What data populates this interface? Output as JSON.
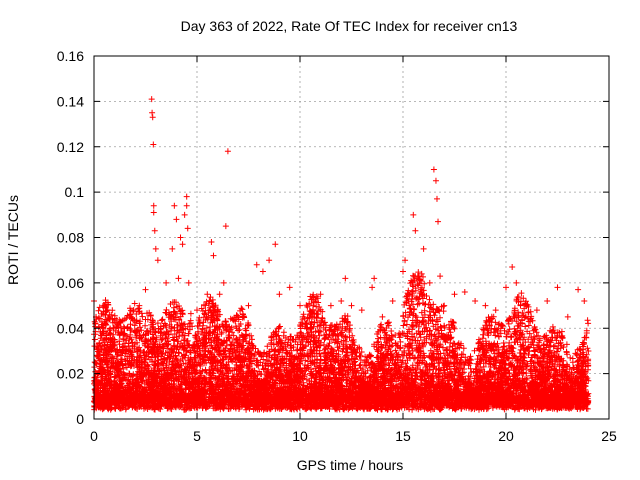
{
  "chart_data": {
    "type": "scatter",
    "title": "Day 363 of 2022, Rate Of TEC Index for receiver cn13",
    "xlabel": "GPS time / hours",
    "ylabel": "ROTI / TECUs",
    "xlim": [
      0,
      25
    ],
    "ylim": [
      0,
      0.16
    ],
    "xticks": [
      "0",
      "5",
      "10",
      "15",
      "20",
      "25"
    ],
    "yticks": [
      "0",
      "0.02",
      "0.04",
      "0.06",
      "0.08",
      "0.1",
      "0.12",
      "0.14",
      "0.16"
    ],
    "grid": true,
    "marker": "plus",
    "color": "#ff0000",
    "series": [
      {
        "points": [
          [
            0.0,
            0.052
          ],
          [
            0.1,
            0.045
          ],
          [
            0.3,
            0.03
          ],
          [
            0.5,
            0.025
          ],
          [
            1.0,
            0.035
          ],
          [
            1.3,
            0.043
          ],
          [
            1.8,
            0.045
          ],
          [
            2.2,
            0.05
          ],
          [
            2.5,
            0.057
          ],
          [
            2.8,
            0.141
          ],
          [
            2.82,
            0.135
          ],
          [
            2.85,
            0.133
          ],
          [
            2.88,
            0.121
          ],
          [
            2.9,
            0.094
          ],
          [
            2.9,
            0.091
          ],
          [
            2.95,
            0.083
          ],
          [
            3.0,
            0.075
          ],
          [
            3.1,
            0.07
          ],
          [
            3.5,
            0.06
          ],
          [
            3.8,
            0.075
          ],
          [
            3.9,
            0.094
          ],
          [
            4.0,
            0.088
          ],
          [
            4.1,
            0.062
          ],
          [
            4.2,
            0.08
          ],
          [
            4.3,
            0.077
          ],
          [
            4.4,
            0.09
          ],
          [
            4.5,
            0.098
          ],
          [
            4.5,
            0.094
          ],
          [
            4.55,
            0.084
          ],
          [
            4.6,
            0.06
          ],
          [
            5.0,
            0.048
          ],
          [
            5.5,
            0.055
          ],
          [
            5.7,
            0.078
          ],
          [
            5.8,
            0.072
          ],
          [
            6.1,
            0.055
          ],
          [
            6.3,
            0.06
          ],
          [
            6.4,
            0.085
          ],
          [
            6.5,
            0.118
          ],
          [
            7.0,
            0.045
          ],
          [
            7.5,
            0.05
          ],
          [
            7.9,
            0.068
          ],
          [
            8.2,
            0.065
          ],
          [
            8.5,
            0.07
          ],
          [
            8.8,
            0.077
          ],
          [
            9.0,
            0.055
          ],
          [
            9.5,
            0.058
          ],
          [
            10.0,
            0.05
          ],
          [
            10.5,
            0.054
          ],
          [
            11.0,
            0.055
          ],
          [
            11.5,
            0.05
          ],
          [
            12.0,
            0.052
          ],
          [
            12.2,
            0.062
          ],
          [
            12.5,
            0.05
          ],
          [
            13.0,
            0.048
          ],
          [
            13.5,
            0.058
          ],
          [
            13.6,
            0.062
          ],
          [
            14.0,
            0.045
          ],
          [
            14.5,
            0.052
          ],
          [
            15.0,
            0.065
          ],
          [
            15.1,
            0.07
          ],
          [
            15.5,
            0.09
          ],
          [
            15.6,
            0.083
          ],
          [
            15.8,
            0.06
          ],
          [
            16.0,
            0.075
          ],
          [
            16.3,
            0.06
          ],
          [
            16.5,
            0.11
          ],
          [
            16.6,
            0.105
          ],
          [
            16.65,
            0.097
          ],
          [
            16.7,
            0.087
          ],
          [
            16.8,
            0.063
          ],
          [
            17.0,
            0.05
          ],
          [
            17.5,
            0.055
          ],
          [
            18.0,
            0.056
          ],
          [
            18.5,
            0.052
          ],
          [
            19.0,
            0.05
          ],
          [
            19.5,
            0.048
          ],
          [
            20.0,
            0.058
          ],
          [
            20.3,
            0.067
          ],
          [
            20.5,
            0.06
          ],
          [
            21.0,
            0.05
          ],
          [
            21.5,
            0.048
          ],
          [
            22.0,
            0.052
          ],
          [
            22.5,
            0.058
          ],
          [
            23.0,
            0.045
          ],
          [
            23.5,
            0.057
          ],
          [
            23.8,
            0.052
          ],
          [
            24.0,
            0.03
          ]
        ]
      }
    ]
  }
}
